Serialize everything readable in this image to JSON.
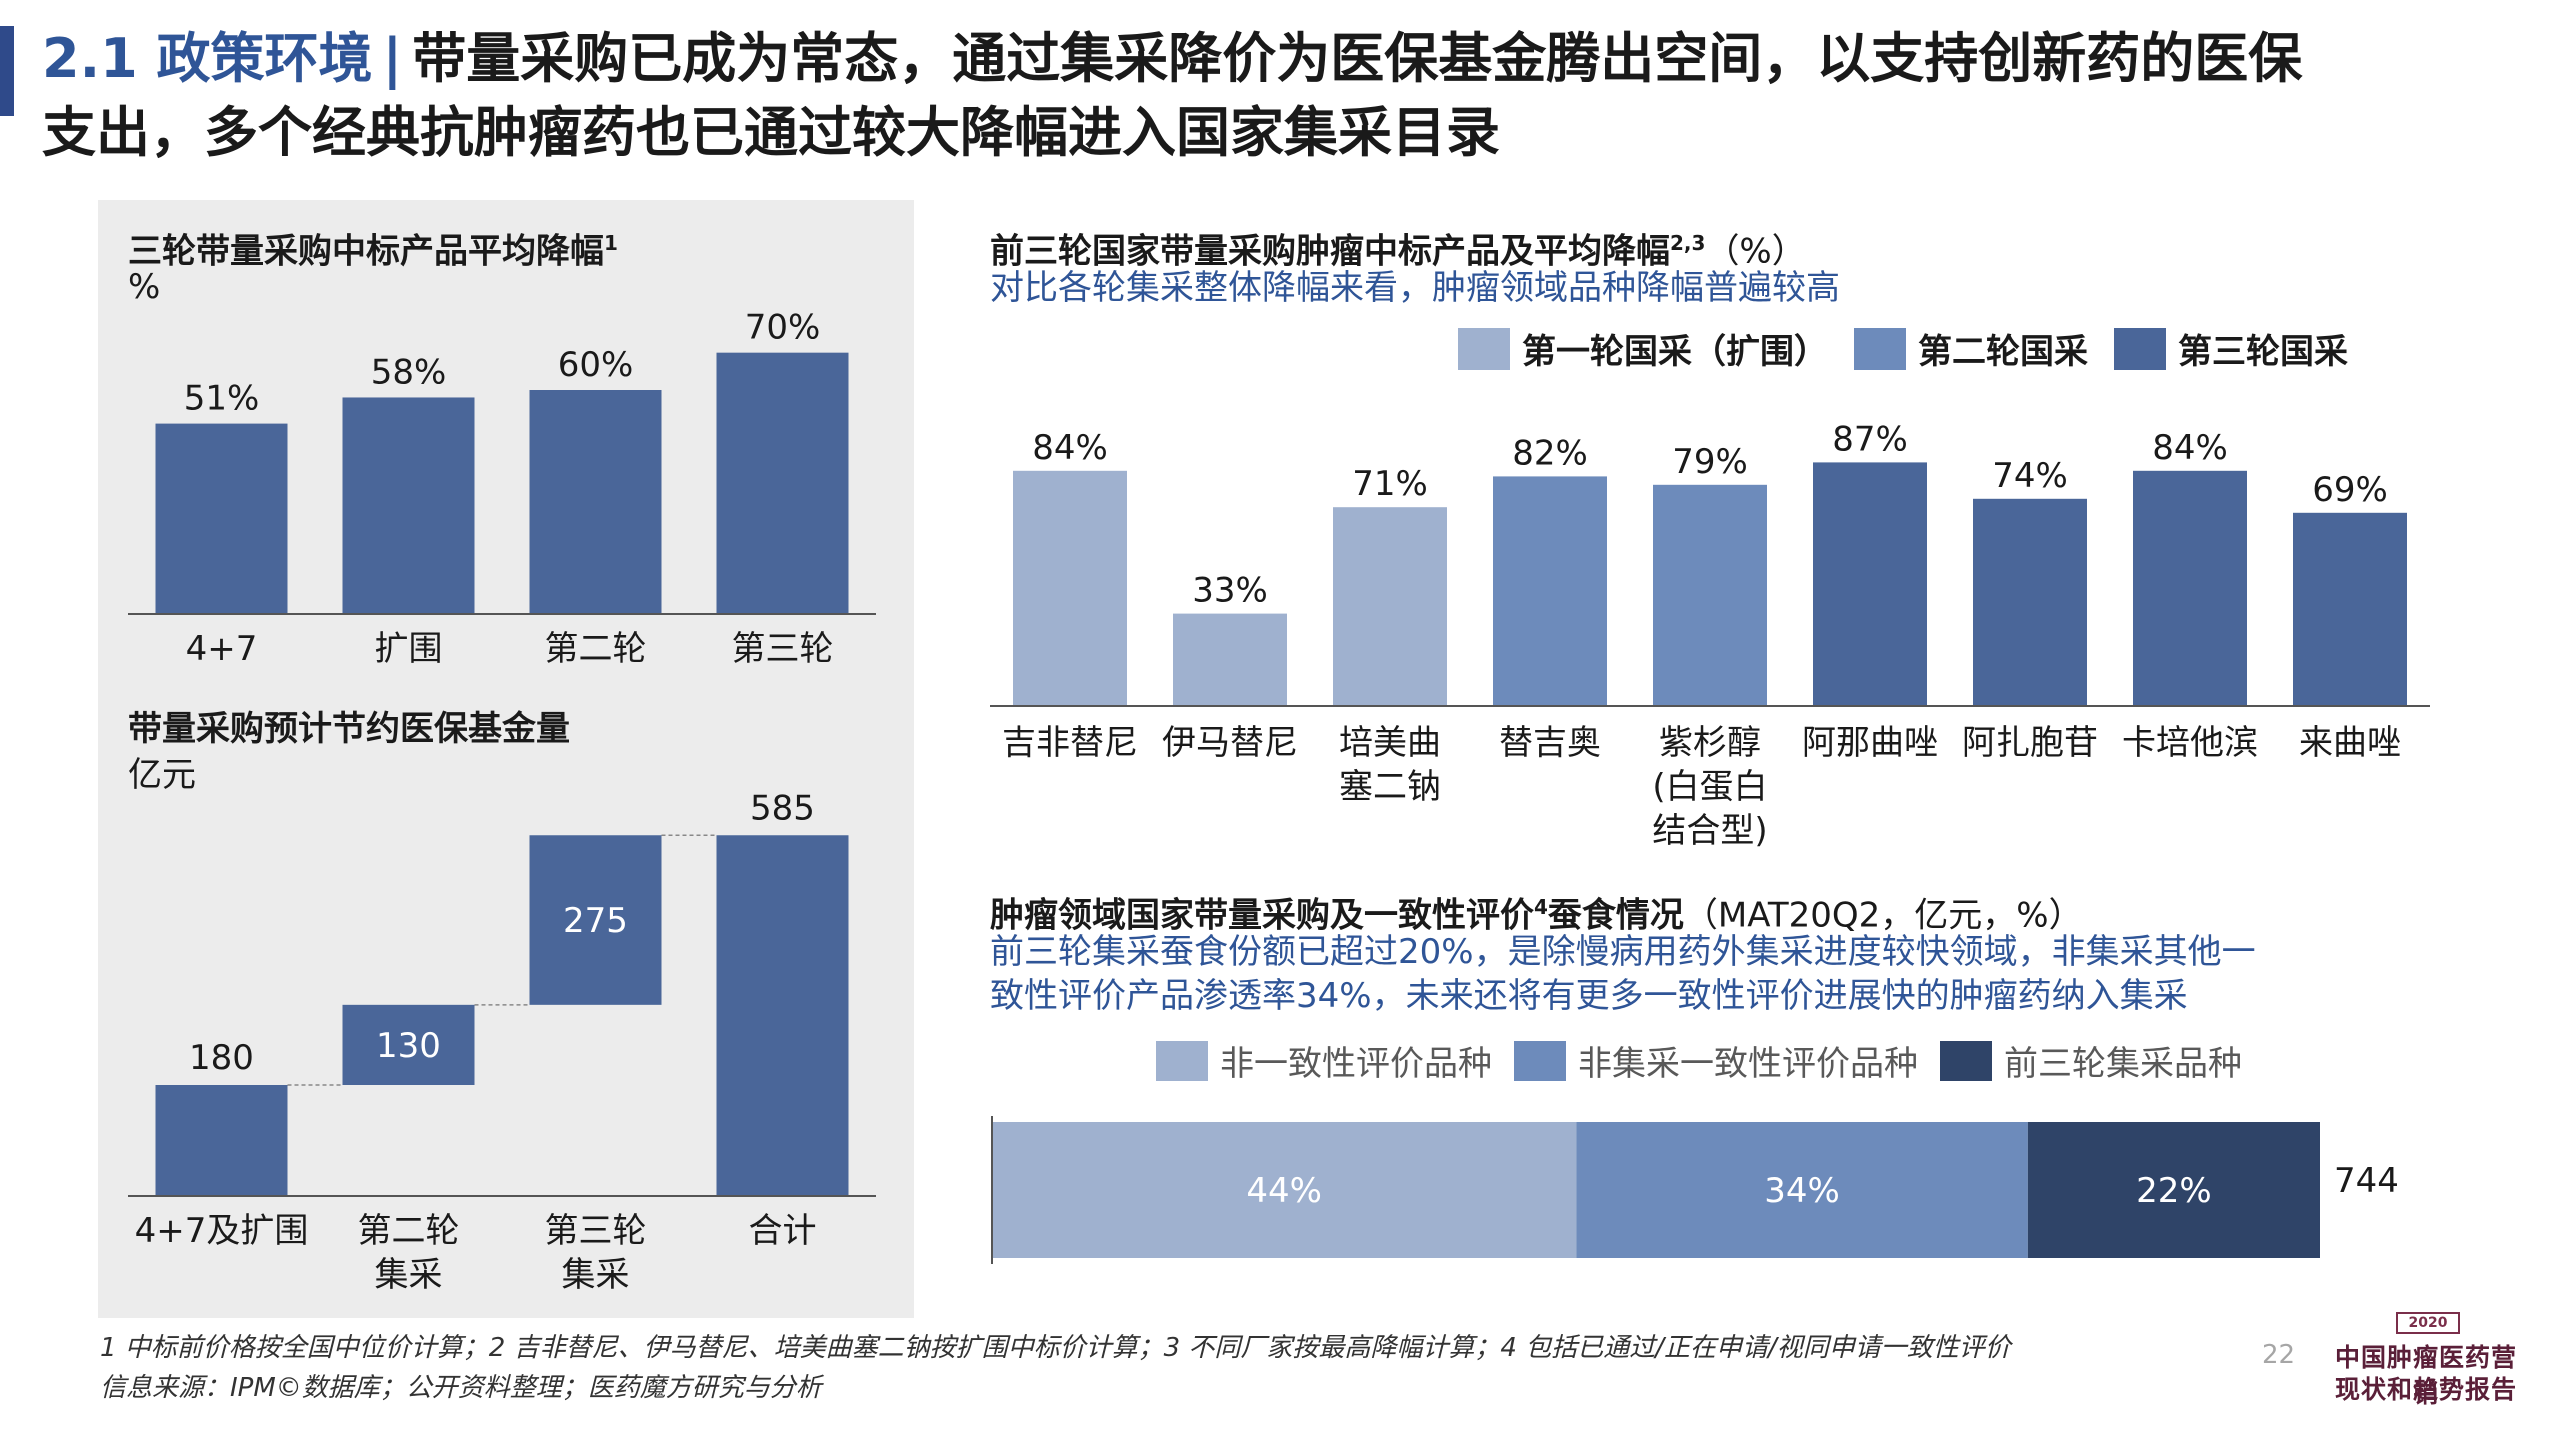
{
  "header": {
    "section": "2.1 政策环境",
    "separator": "|",
    "line1": "带量采购已成为常态，通过集采降价为医保基金腾出空间，以支持创新药的医保",
    "line2": "支出，多个经典抗肿瘤药也已通过较大降幅进入国家集采目录"
  },
  "colors": {
    "bar_main": "#4a6699",
    "round1": "#9fb1cf",
    "round2": "#6d8bbb",
    "round3": "#4a6699",
    "dark": "#2f4468",
    "panel_bg": "#ececec",
    "accent": "#2f5597"
  },
  "chart_data": [
    {
      "id": "avg-decline",
      "type": "bar",
      "title": "三轮带量采购中标产品平均降幅",
      "title_sup": "1",
      "unit": "%",
      "categories": [
        "4+7",
        "扩围",
        "第二轮",
        "第三轮"
      ],
      "values": [
        51,
        58,
        60,
        70
      ],
      "labels": [
        "51%",
        "58%",
        "60%",
        "70%"
      ],
      "ylim": [
        0,
        75
      ],
      "grid": false
    },
    {
      "id": "savings",
      "type": "bar",
      "subtype": "waterfall",
      "title": "带量采购预计节约医保基金量",
      "unit": "亿元",
      "categories": [
        [
          "4+7及扩围"
        ],
        [
          "第二轮",
          "集采"
        ],
        [
          "第三轮",
          "集采"
        ],
        [
          "合计"
        ]
      ],
      "values": [
        180,
        130,
        275,
        585
      ],
      "labels": [
        "180",
        "130",
        "275",
        "585"
      ],
      "ylim": [
        0,
        600
      ],
      "grid": false
    },
    {
      "id": "oncology-decline",
      "type": "bar",
      "title": "前三轮国家带量采购肿瘤中标产品及平均降幅",
      "title_sup": "2,3",
      "unit": "（%）",
      "subtitle": "对比各轮集采整体降幅来看，肿瘤领域品种降幅普遍较高",
      "legend": [
        "第一轮国采（扩围）",
        "第二轮国采",
        "第三轮国采"
      ],
      "categories": [
        [
          "吉非替尼"
        ],
        [
          "伊马替尼"
        ],
        [
          "培美曲",
          "塞二钠"
        ],
        [
          "替吉奥"
        ],
        [
          "紫杉醇",
          "(白蛋白",
          "结合型)"
        ],
        [
          "阿那曲唑"
        ],
        [
          "阿扎胞苷"
        ],
        [
          "卡培他滨"
        ],
        [
          "来曲唑"
        ]
      ],
      "values": [
        84,
        33,
        71,
        82,
        79,
        87,
        74,
        84,
        69
      ],
      "labels": [
        "84%",
        "33%",
        "71%",
        "82%",
        "79%",
        "87%",
        "74%",
        "84%",
        "69%"
      ],
      "round": [
        1,
        1,
        1,
        2,
        2,
        3,
        3,
        3,
        3
      ],
      "ylim": [
        0,
        100
      ],
      "grid": false
    },
    {
      "id": "consistency-share",
      "type": "bar",
      "subtype": "stacked-horizontal",
      "title": "肿瘤领域国家带量采购及一致性评价",
      "title_sup": "4",
      "title_tail": "蚕食情况",
      "unit": "（MAT20Q2，亿元，%）",
      "subtitle_lines": [
        "前三轮集采蚕食份额已超过20%，是除慢病用药外集采进度较快领域，非集采其他一",
        "致性评价产品渗透率34%，未来还将有更多一致性评价进展快的肿瘤药纳入集采"
      ],
      "legend": [
        "非一致性评价品种",
        "非集采一致性评价品种",
        "前三轮集采品种"
      ],
      "series": [
        {
          "name": "非一致性评价品种",
          "values": [
            44
          ],
          "label": "44%"
        },
        {
          "name": "非集采一致性评价品种",
          "values": [
            34
          ],
          "label": "34%"
        },
        {
          "name": "前三轮集采品种",
          "values": [
            22
          ],
          "label": "22%"
        }
      ],
      "total": "744",
      "xlim": [
        0,
        100
      ]
    }
  ],
  "footer": {
    "notes": "1 中标前价格按全国中位价计算；2 吉非替尼、伊马替尼、培美曲塞二钠按扩围中标价计算；3 不同厂家按最高降幅计算；4 包括已通过/正在申请/视同申请一致性评价",
    "source": "信息来源：IPM©数据库；公开资料整理；医药魔方研究与分析",
    "page": "22"
  },
  "logo": {
    "year": "2020",
    "line1": "中国肿瘤医药营销",
    "line2": "现状和趋势报告"
  }
}
